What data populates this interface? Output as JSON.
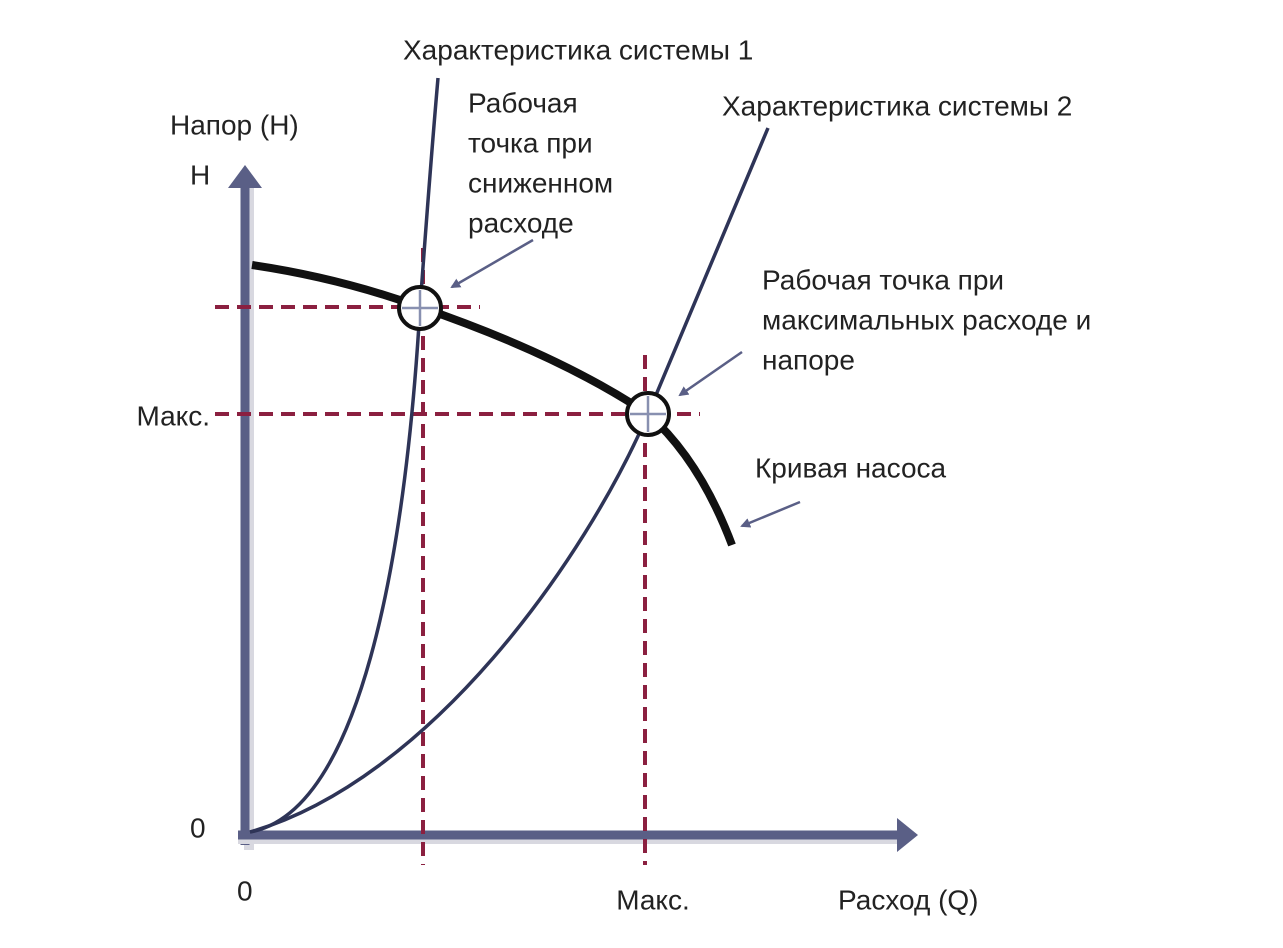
{
  "curves": {
    "system_1": "Характеристика системы 1",
    "system_2": "Характеристика системы 2",
    "pump": "Кривая насоса"
  },
  "operating_points": [
    {
      "label_lines": [
        "Рабочая",
        "точка при",
        "сниженном",
        "расходе"
      ]
    },
    {
      "label_lines": [
        "Рабочая точка при",
        "максимальных расходе и",
        "напоре"
      ]
    }
  ],
  "axes": {
    "y_title": "Напор (H)",
    "y_symbol": "H",
    "y_zero": "0",
    "y_max": "Макс.",
    "x_zero": "0",
    "x_max": "Макс.",
    "x_title": "Расход (Q)"
  }
}
